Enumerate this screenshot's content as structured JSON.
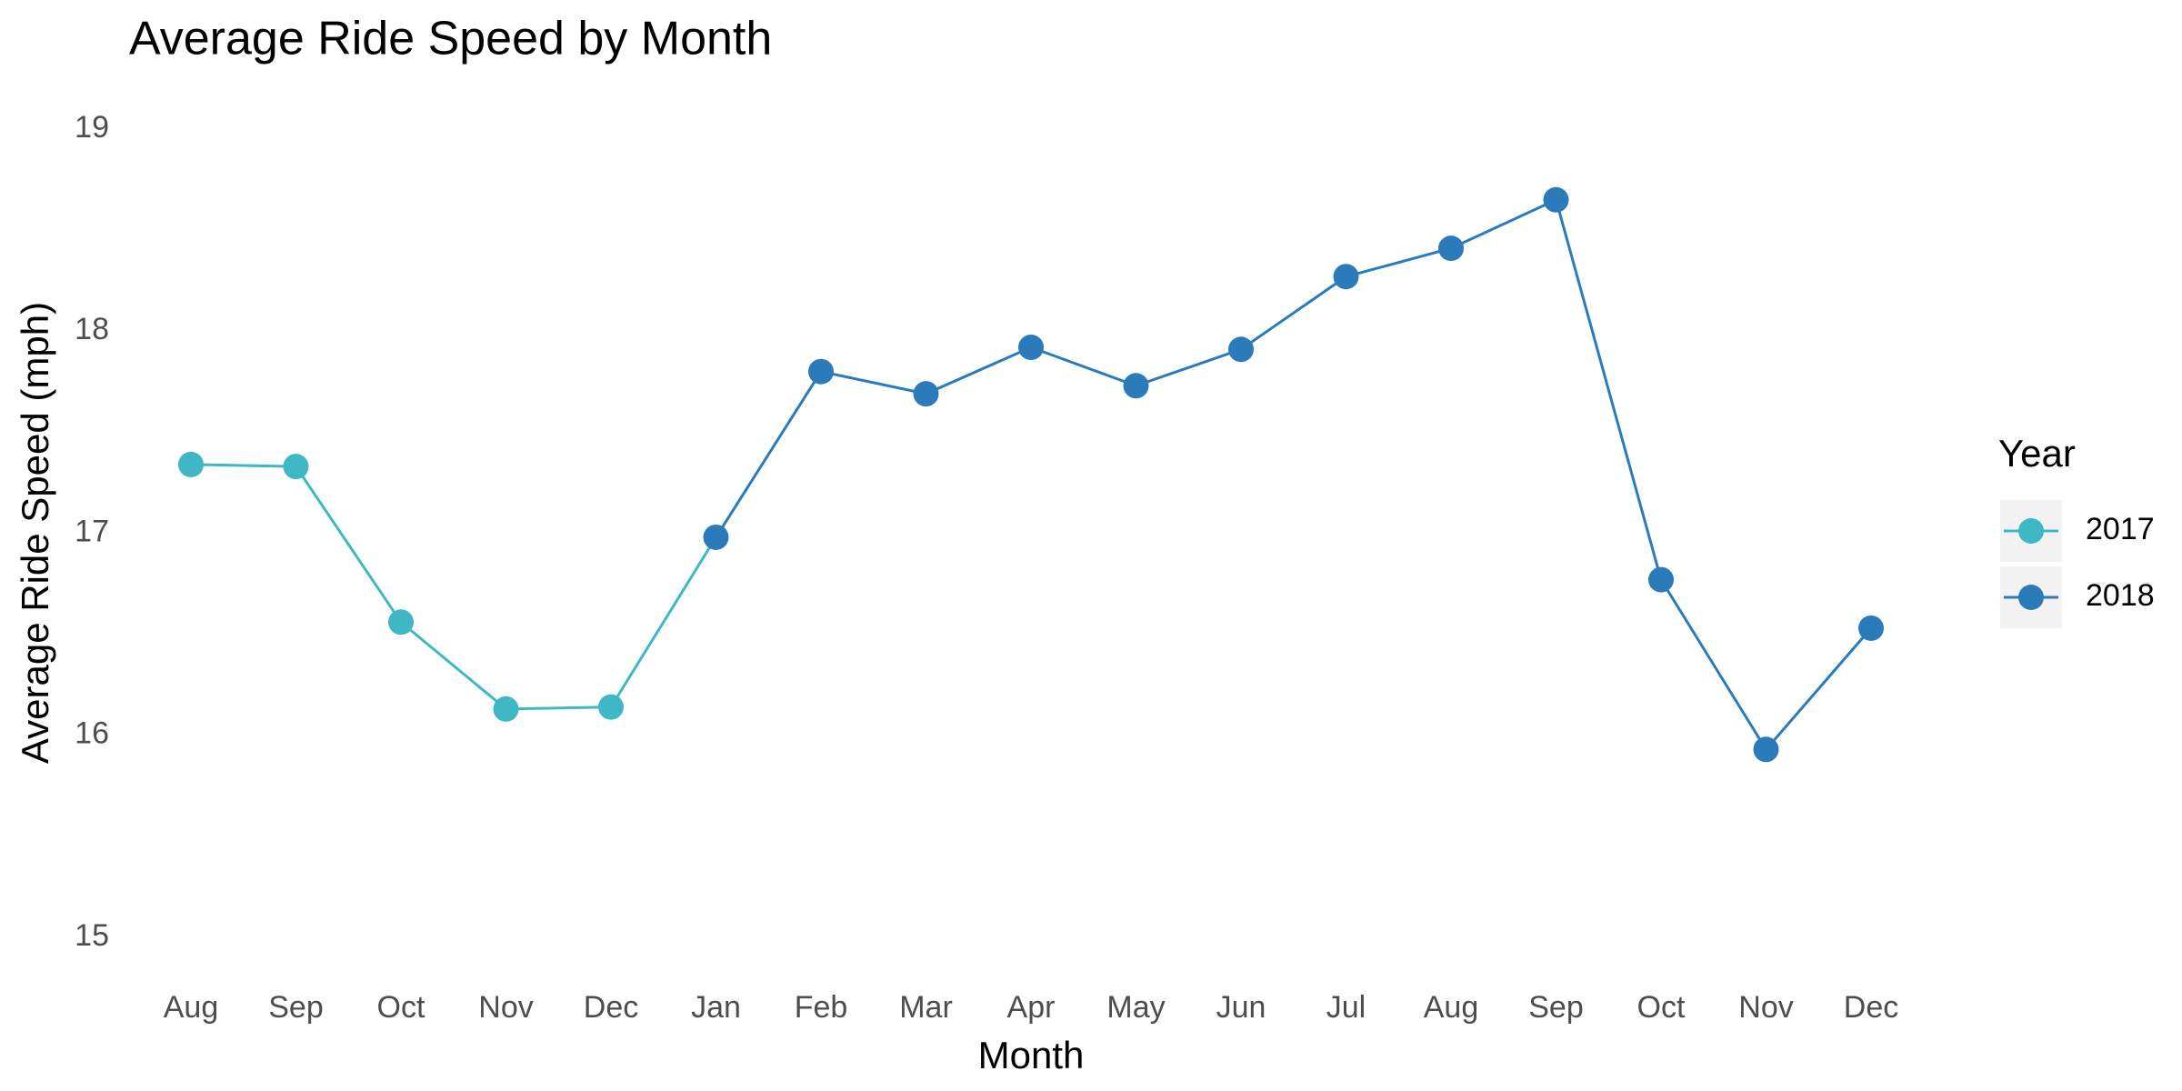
{
  "chart_data": {
    "type": "line",
    "title": "Average Ride Speed by Month",
    "x_label": "Month",
    "y_label": "Average Ride Speed (mph)",
    "legend_title": "Year",
    "legend_position": "right",
    "grid": false,
    "categories": [
      "Aug",
      "Sep",
      "Oct",
      "Nov",
      "Dec",
      "Jan",
      "Feb",
      "Mar",
      "Apr",
      "May",
      "Jun",
      "Jul",
      "Aug",
      "Sep",
      "Oct",
      "Nov",
      "Dec"
    ],
    "series": [
      {
        "name": "2017",
        "color": "#3fb7c4",
        "values": [
          17.34,
          17.33,
          16.56,
          16.13,
          16.14,
          null,
          null,
          null,
          null,
          null,
          null,
          null,
          null,
          null,
          null,
          null,
          null
        ]
      },
      {
        "name": "2018",
        "color": "#2b7bba",
        "values": [
          null,
          null,
          null,
          null,
          null,
          16.98,
          17.8,
          17.69,
          17.92,
          17.73,
          17.91,
          18.27,
          18.41,
          18.65,
          16.77,
          15.93,
          16.53
        ]
      }
    ],
    "ylim": [
      15,
      19
    ],
    "yticks": [
      15,
      16,
      17,
      18,
      19
    ]
  }
}
